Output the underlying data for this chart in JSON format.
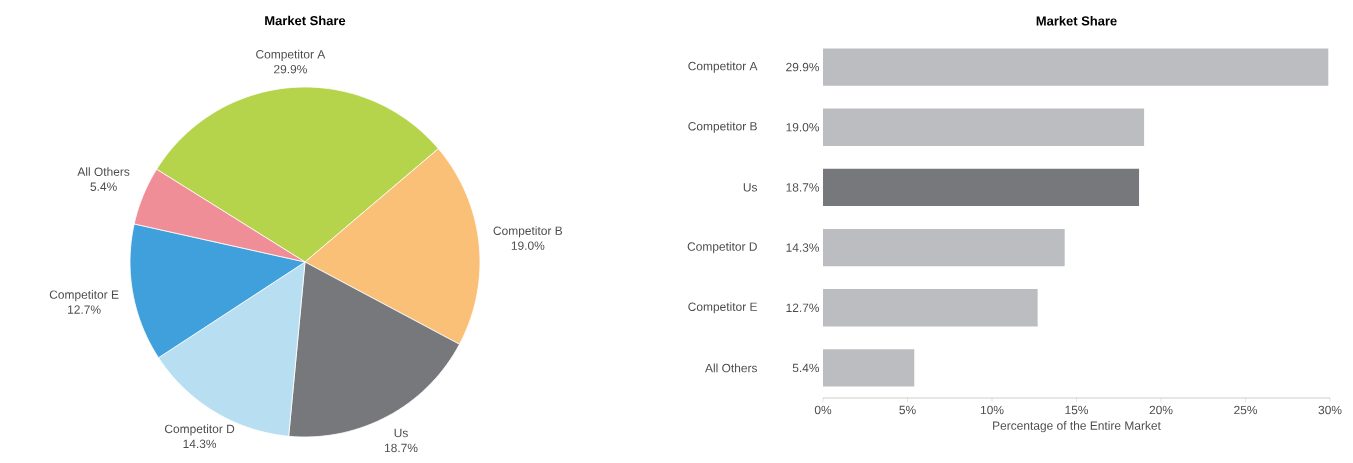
{
  "chart_data": [
    {
      "type": "pie",
      "title": "Market Share",
      "categories": [
        "Competitor A",
        "Competitor B",
        "Us",
        "Competitor D",
        "Competitor E",
        "All Others"
      ],
      "values": [
        29.9,
        19.0,
        18.7,
        14.3,
        12.7,
        5.4
      ],
      "colors": [
        "#b5d44c",
        "#fbc078",
        "#77787c",
        "#b7def1",
        "#3fa0dc",
        "#ef8e96"
      ],
      "value_labels": [
        "29.9%",
        "19.0%",
        "18.7%",
        "14.3%",
        "12.7%",
        "5.4%"
      ]
    },
    {
      "type": "bar",
      "orientation": "horizontal",
      "title": "Market Share",
      "categories": [
        "Competitor A",
        "Competitor B",
        "Us",
        "Competitor D",
        "Competitor E",
        "All Others"
      ],
      "values": [
        29.9,
        19.0,
        18.7,
        14.3,
        12.7,
        5.4
      ],
      "colors": [
        "#bcbdc0",
        "#bcbdc0",
        "#77787c",
        "#bcbdc0",
        "#bcbdc0",
        "#bcbdc0"
      ],
      "value_labels": [
        "29.9%",
        "19.0%",
        "18.7%",
        "14.3%",
        "12.7%",
        "5.4%"
      ],
      "xlabel": "Percentage of the Entire Market",
      "xlim": [
        0,
        30
      ],
      "xticks": [
        {
          "value": 0,
          "label": "0%"
        },
        {
          "value": 5,
          "label": "5%"
        },
        {
          "value": 10,
          "label": "10%"
        },
        {
          "value": 15,
          "label": "15%"
        },
        {
          "value": 20,
          "label": "20%"
        },
        {
          "value": 25,
          "label": "25%"
        },
        {
          "value": 30,
          "label": "30%"
        }
      ]
    }
  ]
}
